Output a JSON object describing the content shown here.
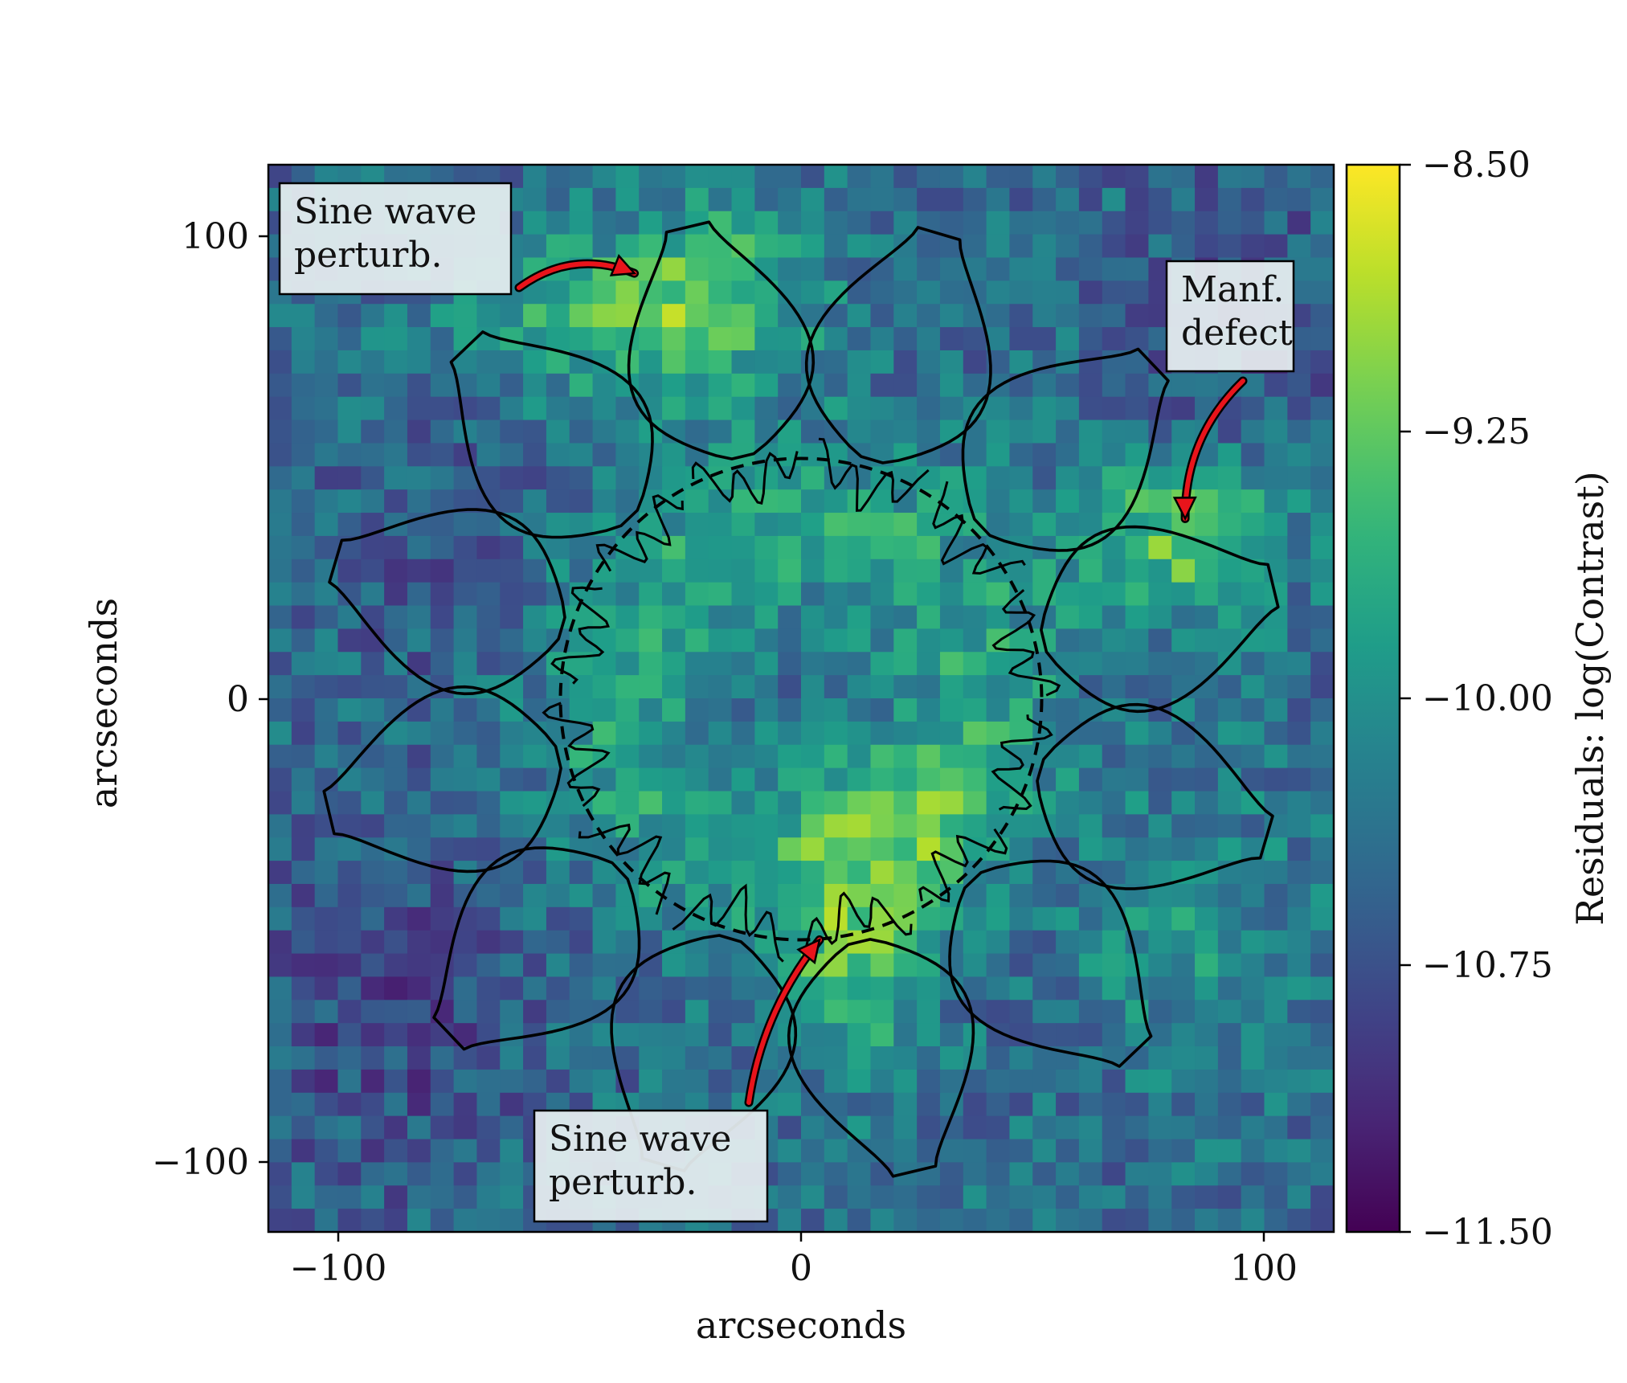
{
  "chart_data": {
    "type": "heatmap",
    "xlabel": "arcseconds",
    "ylabel": "arcseconds",
    "xlim": [
      -115,
      115
    ],
    "ylim": [
      -115,
      115
    ],
    "xticks": [
      -100,
      0,
      100
    ],
    "yticks": [
      -100,
      0,
      100
    ],
    "xtick_labels": [
      "−100",
      "0",
      "100"
    ],
    "ytick_labels": [
      "−100",
      "0",
      "100"
    ],
    "colormap": "viridis",
    "colorbar": {
      "label": "Residuals: log(Contrast)",
      "range": [
        -11.5,
        -8.5
      ],
      "ticks": [
        -8.5,
        -9.25,
        -10.0,
        -10.75,
        -11.5
      ],
      "tick_labels": [
        "−8.50",
        "−9.25",
        "−10.00",
        "−10.75",
        "−11.50"
      ]
    },
    "grid": false,
    "overlay": {
      "starshade_petals": 12,
      "petal_inner_radius": 52,
      "petal_outer_radius": 105,
      "dashed_circle_radius": 52
    },
    "annotations": [
      {
        "text": "Sine wave\nperturb.",
        "target": [
          -36,
          92
        ],
        "lines": [
          "Sine wave",
          "perturb."
        ]
      },
      {
        "text": "Manf.\ndefect",
        "target": [
          83,
          39
        ],
        "lines": [
          "Manf.",
          "defect"
        ]
      },
      {
        "text": "Sine wave\nperturb.",
        "target": [
          4,
          -52
        ],
        "lines": [
          "Sine wave",
          "perturb."
        ]
      }
    ]
  },
  "colors": {
    "viridis": [
      "#440154",
      "#482878",
      "#3e4989",
      "#31688e",
      "#26828e",
      "#1f9e89",
      "#35b779",
      "#6ece58",
      "#b5de2b",
      "#fde725"
    ],
    "arrow": "#e8141b",
    "outline": "#000000",
    "annotation_bg": "#e6eef0"
  }
}
